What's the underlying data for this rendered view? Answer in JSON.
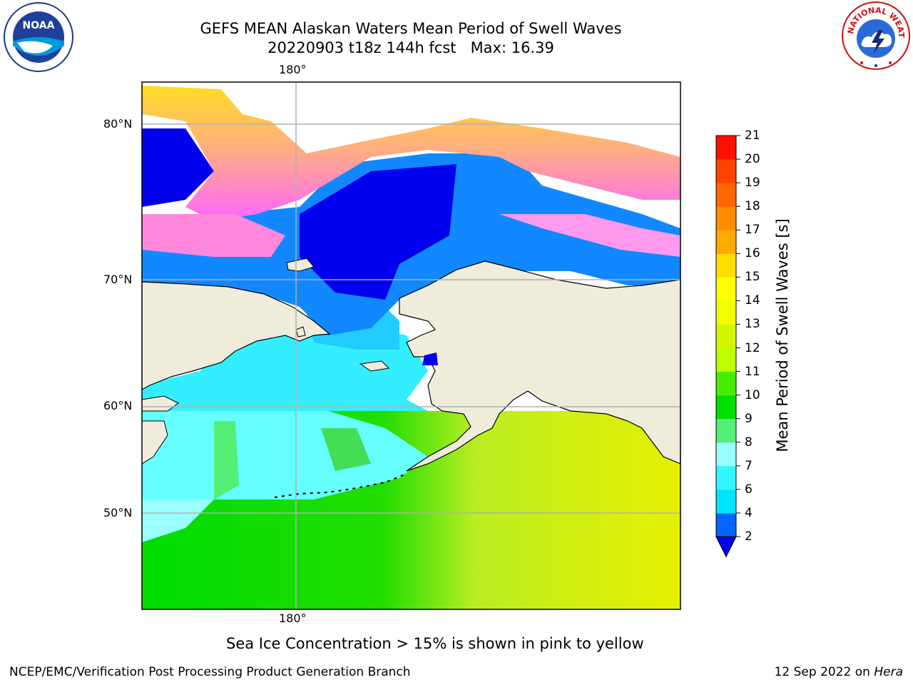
{
  "title": {
    "line1": "GEFS MEAN Alaskan Waters Mean Period of Swell Waves",
    "line2": "20220903 t18z 144h fcst   Max: 16.39"
  },
  "map": {
    "lon_labels": [
      "180°",
      "180°"
    ],
    "lat_labels": [
      "80°N",
      "70°N",
      "60°N",
      "50°N"
    ],
    "land_color": "#efecdc",
    "grid_color": "#b0b0b0"
  },
  "colorbar": {
    "label": "Mean Period of Swell Waves [s]",
    "ticks": [
      "2",
      "4",
      "6",
      "7",
      "8",
      "9",
      "10",
      "11",
      "12",
      "13",
      "14",
      "15",
      "16",
      "17",
      "18",
      "19",
      "20",
      "21"
    ],
    "colors": [
      "#0066ff",
      "#00e5ff",
      "#33f5ff",
      "#99ffff",
      "#55ee77",
      "#00dd00",
      "#44ee00",
      "#bbff00",
      "#d4f500",
      "#eeff00",
      "#ffff00",
      "#ffdd00",
      "#ffaa00",
      "#ff8c00",
      "#ff6600",
      "#ff4400",
      "#ff1100"
    ],
    "under_color": "#0000ff"
  },
  "note": "Sea Ice Concentration > 15% is shown in pink to yellow",
  "footer": {
    "left": "NCEP/EMC/Verification Post Processing Product Generation Branch",
    "date": "12 Sep 2022 on ",
    "host": "Hera"
  },
  "logos": {
    "noaa_text": "NOAA",
    "nws_text": "NATIONAL WEATHER SERVICE"
  }
}
